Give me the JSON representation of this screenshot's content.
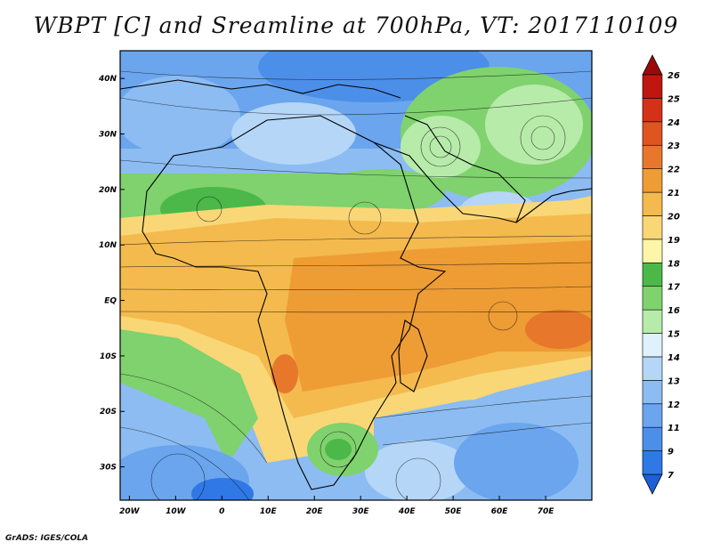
{
  "title": "WBPT [C] and Sreamline at 700hPa, VT: 2017110109",
  "credit": "GrADS: IGES/COLA",
  "map": {
    "lon_range": [
      -22,
      80
    ],
    "lat_range": [
      -36,
      45
    ],
    "lon_ticks": [
      {
        "value": -20,
        "label": "20W"
      },
      {
        "value": -10,
        "label": "10W"
      },
      {
        "value": 0,
        "label": "0"
      },
      {
        "value": 10,
        "label": "10E"
      },
      {
        "value": 20,
        "label": "20E"
      },
      {
        "value": 30,
        "label": "30E"
      },
      {
        "value": 40,
        "label": "40E"
      },
      {
        "value": 50,
        "label": "50E"
      },
      {
        "value": 60,
        "label": "60E"
      },
      {
        "value": 70,
        "label": "70E"
      }
    ],
    "lat_ticks": [
      {
        "value": 40,
        "label": "40N"
      },
      {
        "value": 30,
        "label": "30N"
      },
      {
        "value": 20,
        "label": "20N"
      },
      {
        "value": 10,
        "label": "10N"
      },
      {
        "value": 0,
        "label": "EQ"
      },
      {
        "value": -10,
        "label": "10S"
      },
      {
        "value": -20,
        "label": "20S"
      },
      {
        "value": -30,
        "label": "30S"
      }
    ]
  },
  "colorbar": {
    "levels": [
      "7",
      "9",
      "11",
      "12",
      "13",
      "14",
      "15",
      "16",
      "17",
      "18",
      "19",
      "20",
      "21",
      "22",
      "23",
      "24",
      "25",
      "26"
    ],
    "colors": [
      "#1f5fd6",
      "#2f78e6",
      "#4b8fe9",
      "#6aa5ee",
      "#8cbcf2",
      "#b5d6f7",
      "#dff1fb",
      "#b7ebaa",
      "#7fd26d",
      "#4cb84a",
      "#fdf6a8",
      "#f9d777",
      "#f4ba4e",
      "#ee9c34",
      "#e7782b",
      "#df5421",
      "#d43218",
      "#bf1610",
      "#9a0a0a"
    ]
  }
}
